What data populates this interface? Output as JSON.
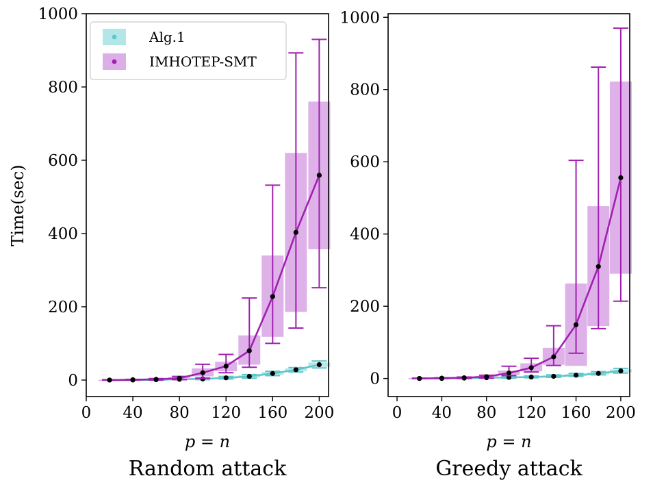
{
  "figure": {
    "ylabel": "Time(sec)",
    "xlabel": "p = n",
    "legend": [
      {
        "label": "Alg.1",
        "color": "#5fc6c9",
        "fill": "#b2e6e8"
      },
      {
        "label": "IMHOTEP-SMT",
        "color": "#a020b0",
        "fill": "#dcaee8"
      }
    ]
  },
  "chart_data": [
    {
      "type": "line",
      "subplot_title": "Random attack",
      "xlabel": "p = n",
      "ylabel": "Time(sec)",
      "xlim": [
        0,
        208
      ],
      "ylim": [
        -45,
        1000
      ],
      "xticks": [
        0,
        40,
        80,
        120,
        160,
        200
      ],
      "yticks": [
        0,
        200,
        400,
        600,
        800,
        1000
      ],
      "legend_position": "top-left",
      "series": [
        {
          "name": "Alg.1",
          "x": [
            20,
            40,
            60,
            80,
            100,
            120,
            140,
            160,
            180,
            200
          ],
          "mean": [
            0,
            0,
            1,
            2,
            3,
            6,
            10,
            18,
            28,
            42
          ],
          "box_low": [
            0,
            0,
            0,
            1,
            2,
            4,
            7,
            14,
            24,
            36
          ],
          "box_high": [
            0,
            1,
            1,
            3,
            5,
            8,
            13,
            22,
            32,
            48
          ],
          "err_low": [
            0,
            0,
            0,
            1,
            1,
            3,
            5,
            12,
            22,
            33
          ],
          "err_high": [
            0,
            1,
            2,
            4,
            6,
            10,
            15,
            24,
            34,
            52
          ]
        },
        {
          "name": "IMHOTEP-SMT",
          "x": [
            20,
            40,
            60,
            80,
            100,
            120,
            140,
            160,
            180,
            200
          ],
          "mean": [
            0,
            1,
            2,
            5,
            20,
            38,
            80,
            228,
            403,
            559
          ],
          "box_low": [
            0,
            0,
            1,
            3,
            10,
            24,
            42,
            118,
            186,
            357
          ],
          "box_high": [
            1,
            2,
            3,
            8,
            32,
            50,
            122,
            340,
            620,
            760
          ],
          "err_low": [
            0,
            0,
            0,
            1,
            5,
            20,
            35,
            100,
            142,
            252
          ],
          "err_high": [
            1,
            2,
            4,
            10,
            43,
            70,
            224,
            532,
            893,
            930
          ]
        }
      ]
    },
    {
      "type": "line",
      "subplot_title": "Greedy attack",
      "xlabel": "p = n",
      "ylabel": "",
      "xlim": [
        -8,
        208
      ],
      "ylim": [
        -50,
        1010
      ],
      "xticks": [
        0,
        40,
        80,
        120,
        160,
        200
      ],
      "yticks": [
        0,
        200,
        400,
        600,
        800,
        1000
      ],
      "series": [
        {
          "name": "Alg.1",
          "x": [
            20,
            40,
            60,
            80,
            100,
            120,
            140,
            160,
            180,
            200
          ],
          "mean": [
            0,
            0,
            1,
            2,
            3,
            4,
            6,
            9,
            14,
            21
          ],
          "box_low": [
            0,
            0,
            0,
            1,
            2,
            3,
            4,
            7,
            11,
            17
          ],
          "box_high": [
            0,
            1,
            1,
            3,
            4,
            6,
            8,
            12,
            17,
            25
          ],
          "err_low": [
            0,
            0,
            0,
            1,
            1,
            2,
            3,
            6,
            10,
            15
          ],
          "err_high": [
            0,
            1,
            2,
            3,
            5,
            7,
            10,
            14,
            19,
            28
          ]
        },
        {
          "name": "IMHOTEP-SMT",
          "x": [
            20,
            40,
            60,
            80,
            100,
            120,
            140,
            160,
            180,
            200
          ],
          "mean": [
            0,
            1,
            2,
            5,
            15,
            30,
            60,
            149,
            310,
            556
          ],
          "box_low": [
            0,
            0,
            1,
            3,
            10,
            20,
            38,
            35,
            145,
            290
          ],
          "box_high": [
            1,
            2,
            3,
            7,
            22,
            42,
            85,
            263,
            477,
            822
          ],
          "err_low": [
            0,
            0,
            0,
            1,
            8,
            18,
            36,
            70,
            138,
            214
          ],
          "err_high": [
            1,
            2,
            4,
            9,
            34,
            56,
            146,
            604,
            862,
            970
          ]
        }
      ]
    }
  ]
}
